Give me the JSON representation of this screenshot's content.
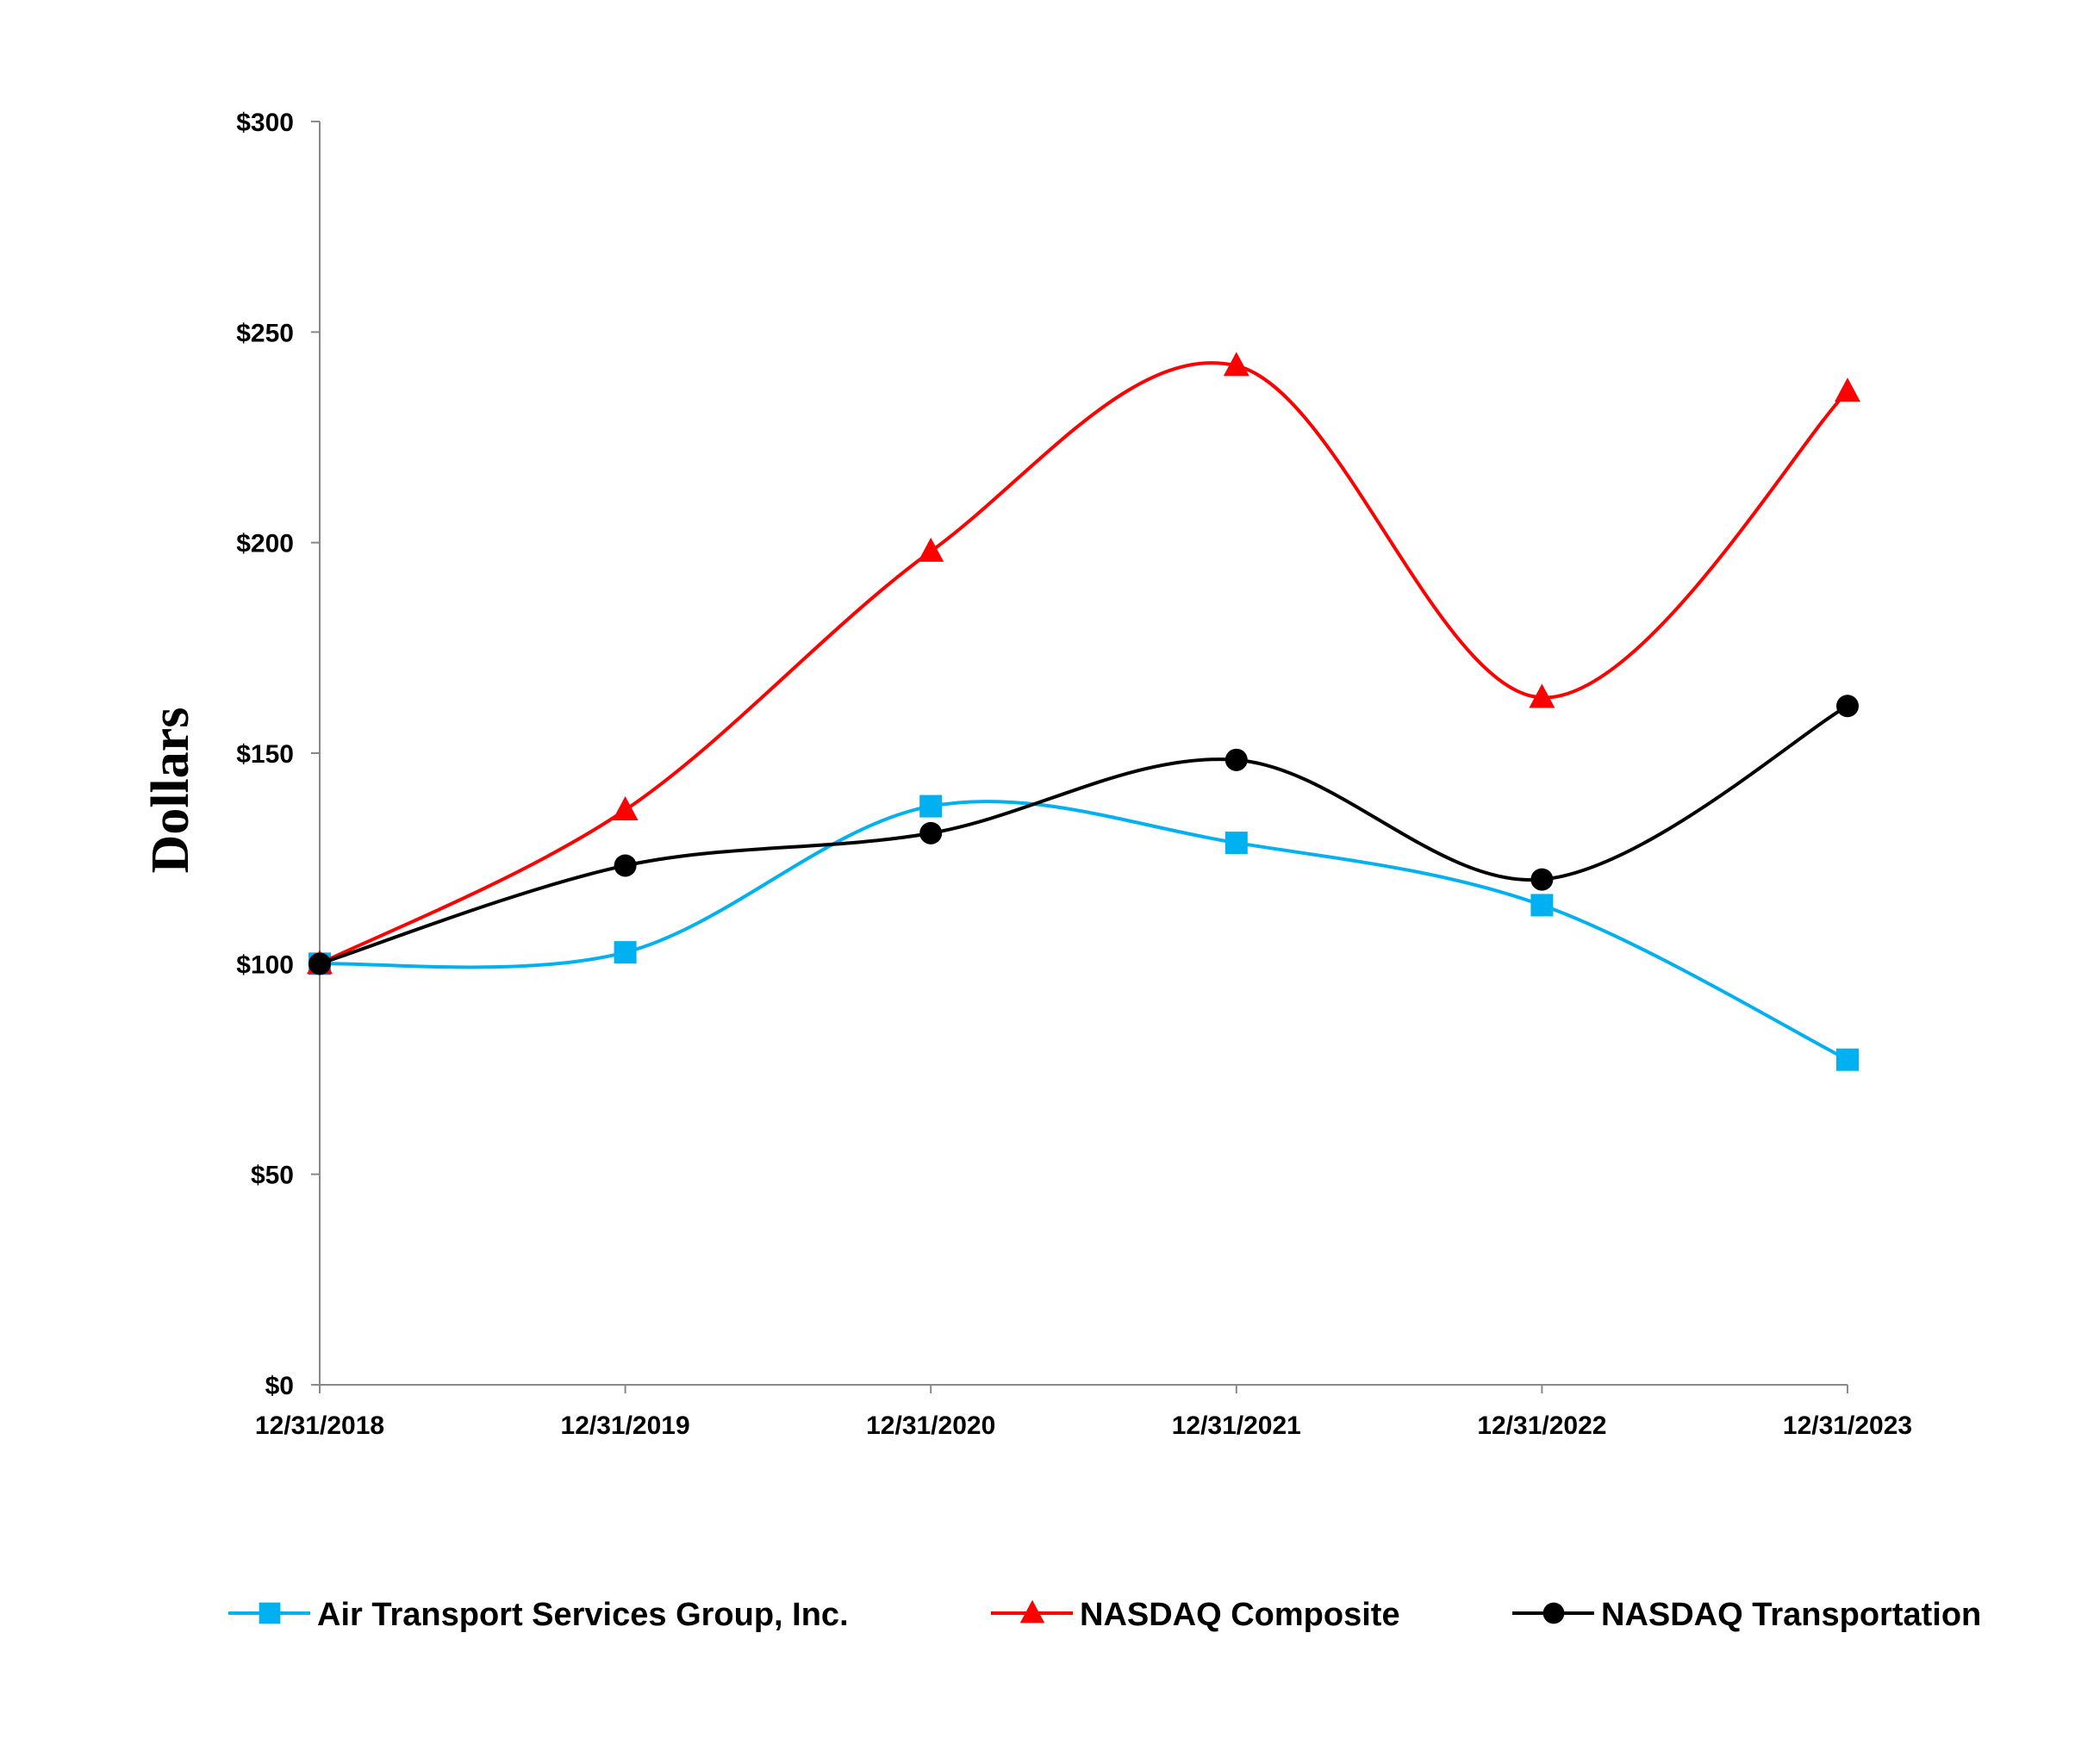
{
  "chart_data": {
    "type": "line",
    "title": "",
    "xlabel": "",
    "ylabel": "Dollars",
    "categories": [
      "12/31/2018",
      "12/31/2019",
      "12/31/2020",
      "12/31/2021",
      "12/31/2022",
      "12/31/2023"
    ],
    "ylim": [
      0,
      300
    ],
    "yticks": [
      0,
      50,
      100,
      150,
      200,
      250,
      300
    ],
    "ytick_labels": [
      "$0",
      "$50",
      "$100",
      "$150",
      "$200",
      "$250",
      "$300"
    ],
    "grid": false,
    "smoothed": true,
    "legend_position": "bottom",
    "series": [
      {
        "name": "Air Transport Services Group, Inc.",
        "color": "#00B0F0",
        "marker": "square",
        "values": [
          100,
          102.7,
          137.4,
          128.7,
          113.9,
          77.2
        ]
      },
      {
        "name": "NASDAQ Composite",
        "color": "#FF0000",
        "marker": "triangle",
        "values": [
          100,
          136.5,
          197.9,
          242.0,
          163.2,
          235.9
        ]
      },
      {
        "name": "NASDAQ Transportation",
        "color": "#000000",
        "marker": "circle",
        "values": [
          100,
          123.3,
          131.0,
          148.4,
          120.0,
          161.2
        ]
      }
    ]
  }
}
